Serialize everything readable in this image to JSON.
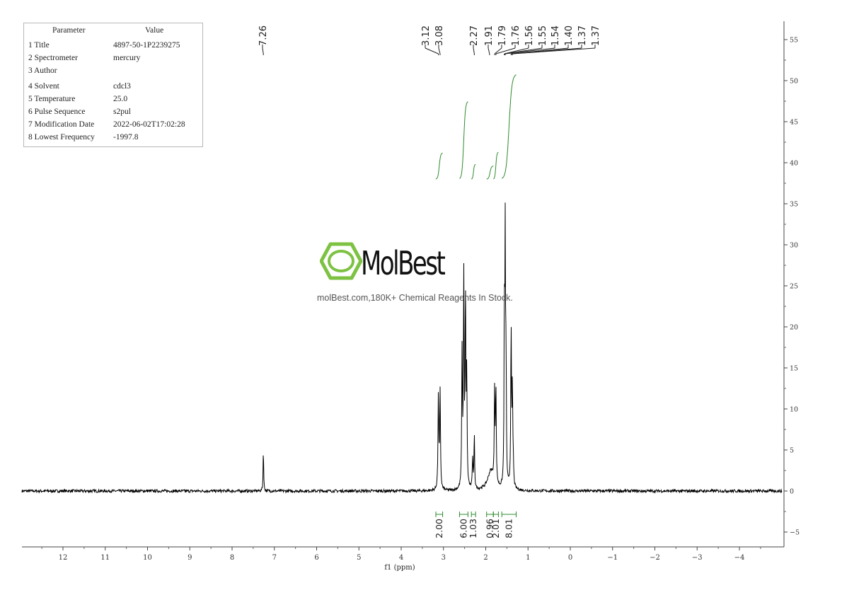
{
  "parameters": {
    "header": {
      "col1": "Parameter",
      "col2": "Value"
    },
    "rows": [
      {
        "label": "1 Title",
        "value": "4897-50-1P2239275"
      },
      {
        "label": "2 Spectrometer",
        "value": "mercury"
      },
      {
        "label": "3 Author",
        "value": ""
      },
      {
        "label": "4 Solvent",
        "value": "cdcl3"
      },
      {
        "label": "5 Temperature",
        "value": "25.0"
      },
      {
        "label": "6 Pulse Sequence",
        "value": "s2pul"
      },
      {
        "label": "7 Modification Date",
        "value": "2022-06-02T17:02:28"
      },
      {
        "label": "8 Lowest Frequency",
        "value": "-1997.8"
      }
    ]
  },
  "watermark": {
    "brand": "MolBest",
    "tagline": "molBest.com,180K+ Chemical Reagents In Stock.",
    "color": "#7dc242"
  },
  "chart_data": {
    "type": "line",
    "xlabel": "f1 (ppm)",
    "xlim": [
      13,
      -5
    ],
    "x_reversed": true,
    "x_ticks": [
      12,
      11,
      10,
      9,
      8,
      7,
      6,
      5,
      4,
      3,
      2,
      1,
      0,
      -1,
      -2,
      -3,
      -4
    ],
    "ylim": [
      -6.5,
      57
    ],
    "y_ticks": [
      -5,
      0,
      5,
      10,
      15,
      20,
      25,
      30,
      35,
      40,
      45,
      50,
      55
    ],
    "colors": {
      "spectrum": "#000000",
      "integral": "#2e8b2e",
      "peak_label": "#222222"
    },
    "peak_labels_group1": [
      "7.26"
    ],
    "peak_labels_group2": [
      "3.12",
      "3.08"
    ],
    "peak_labels_group3": [
      "2.27"
    ],
    "peak_labels_group4": [
      "1.91",
      "1.79",
      "1.76",
      "1.56",
      "1.55",
      "1.54",
      "1.40",
      "1.37",
      "1.37"
    ],
    "peak_positions": [
      7.26,
      3.12,
      3.08,
      2.27,
      1.91,
      1.79,
      1.76,
      1.56,
      1.55,
      1.54,
      1.4,
      1.37,
      1.37
    ],
    "peaks": [
      {
        "ppm": 7.26,
        "height": 5.2,
        "width": 0.008
      },
      {
        "ppm": 3.12,
        "height": 11.5,
        "width": 0.011
      },
      {
        "ppm": 3.08,
        "height": 11.8,
        "width": 0.011
      },
      {
        "ppm": 2.56,
        "height": 16.5,
        "width": 0.01
      },
      {
        "ppm": 2.52,
        "height": 25.5,
        "width": 0.01
      },
      {
        "ppm": 2.48,
        "height": 23.0,
        "width": 0.01
      },
      {
        "ppm": 2.45,
        "height": 13.0,
        "width": 0.01
      },
      {
        "ppm": 2.31,
        "height": 3.5,
        "width": 0.012
      },
      {
        "ppm": 2.27,
        "height": 6.5,
        "width": 0.009
      },
      {
        "ppm": 1.88,
        "height": 2.3,
        "width": 0.09
      },
      {
        "ppm": 1.79,
        "height": 11.0,
        "width": 0.01
      },
      {
        "ppm": 1.76,
        "height": 11.5,
        "width": 0.01
      },
      {
        "ppm": 1.56,
        "height": 20.0,
        "width": 0.009
      },
      {
        "ppm": 1.54,
        "height": 29.0,
        "width": 0.009
      },
      {
        "ppm": 1.52,
        "height": 14.0,
        "width": 0.009
      },
      {
        "ppm": 1.4,
        "height": 19.5,
        "width": 0.01
      },
      {
        "ppm": 1.37,
        "height": 11.5,
        "width": 0.01
      },
      {
        "ppm": 1.35,
        "height": 2.5,
        "width": 0.01
      }
    ],
    "integrals": [
      {
        "value": "2.00",
        "from": 3.18,
        "to": 3.02,
        "y_start": 38,
        "y_end": 41.2
      },
      {
        "value": "6.00",
        "from": 2.62,
        "to": 2.42,
        "y_start": 38,
        "y_end": 47.5
      },
      {
        "value": "1.03",
        "from": 2.34,
        "to": 2.24,
        "y_start": 38,
        "y_end": 39.8
      },
      {
        "value": "0.96",
        "from": 1.98,
        "to": 1.82,
        "y_start": 38,
        "y_end": 39.6
      },
      {
        "value": "2.01",
        "from": 1.82,
        "to": 1.7,
        "y_start": 38,
        "y_end": 41.3
      },
      {
        "value": "8.01",
        "from": 1.62,
        "to": 1.28,
        "y_start": 38,
        "y_end": 50.8
      }
    ]
  }
}
